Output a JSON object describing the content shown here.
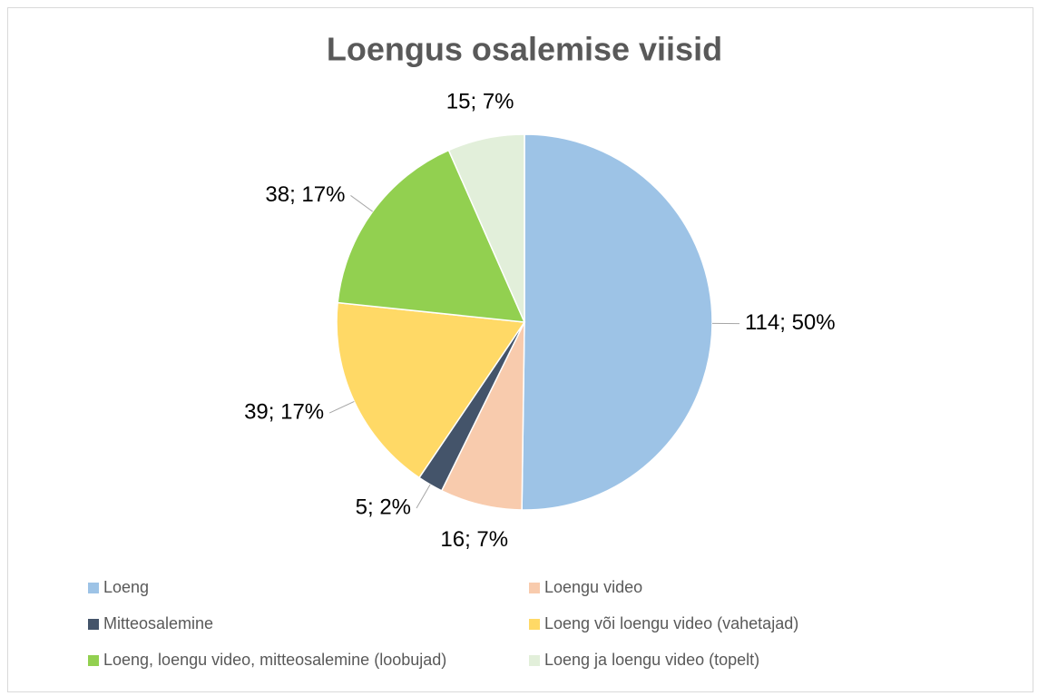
{
  "chart_data": {
    "type": "pie",
    "title": "Loengus osalemise viisid",
    "categories": [
      "Loeng",
      "Loengu video",
      "Mitteosalemine",
      "Loeng või loengu video (vahetajad)",
      "Loeng, loengu video, mitteosalemine (loobujad)",
      "Loeng ja loengu video (topelt)"
    ],
    "values": [
      114,
      16,
      5,
      39,
      38,
      15
    ],
    "value_labels": [
      "114; 50%",
      "16; 7%",
      "5; 2%",
      "39; 17%",
      "38; 17%",
      "15; 7%"
    ],
    "colors": [
      "#9dc3e6",
      "#f8cbad",
      "#44546a",
      "#ffd966",
      "#92d050",
      "#e2efda"
    ],
    "legend": "bottom"
  }
}
